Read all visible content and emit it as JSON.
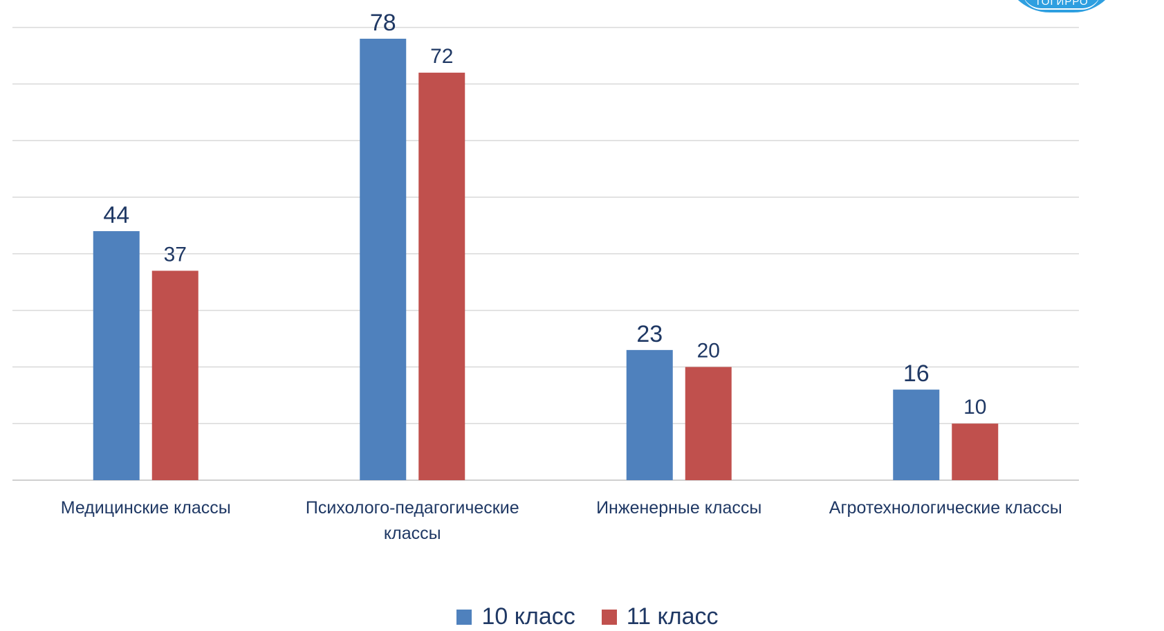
{
  "logo": {
    "text": "ТОГИРРО"
  },
  "chart_data": {
    "type": "bar",
    "categories": [
      "Медицинские классы",
      "Психолого-педагогические классы",
      "Инженерные классы",
      "Агротехнологические классы"
    ],
    "series": [
      {
        "name": "10 класс",
        "values": [
          44,
          78,
          23,
          16
        ],
        "color": "#4f81bd"
      },
      {
        "name": "11 класс",
        "values": [
          37,
          72,
          20,
          10
        ],
        "color": "#c0504d"
      }
    ],
    "ylim": [
      0,
      80
    ],
    "grid": true,
    "legend": "bottom-center",
    "data_labels": true
  }
}
